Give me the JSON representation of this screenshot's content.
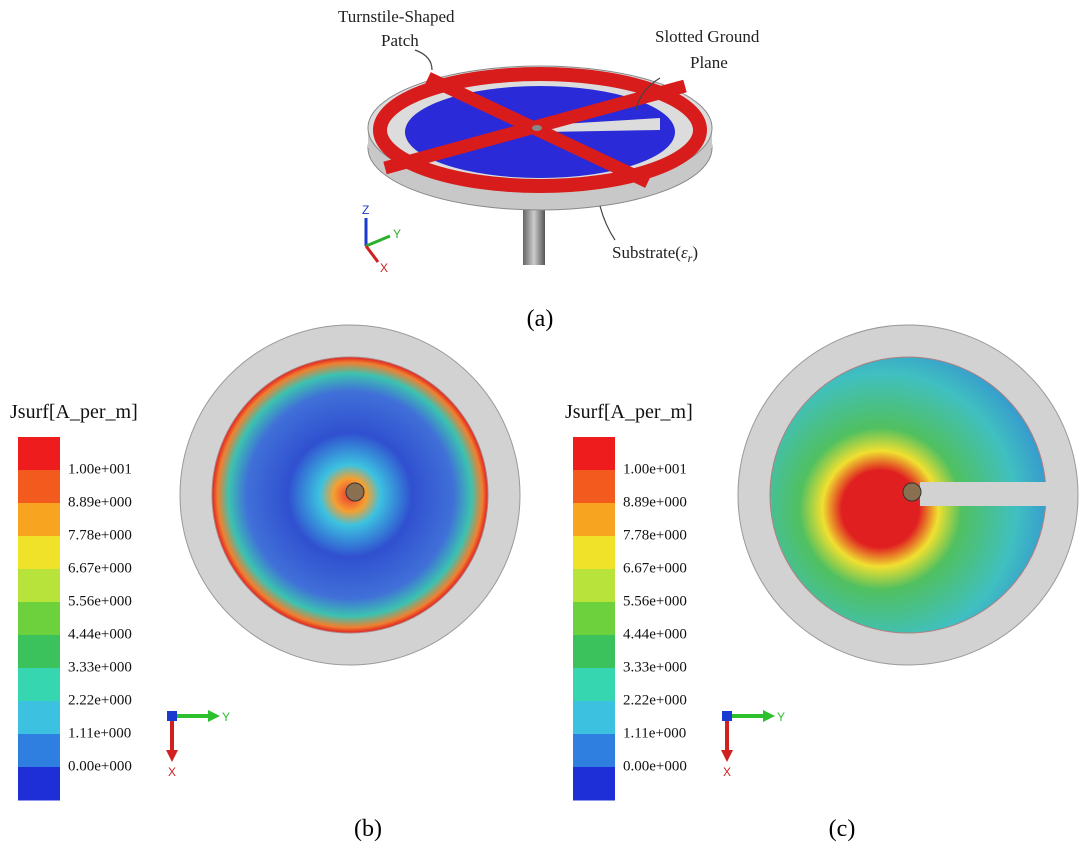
{
  "panel_a": {
    "patch_label": [
      "Turnstile-Shaped",
      "Patch"
    ],
    "ground_label": [
      "Slotted Ground",
      "Plane"
    ],
    "substrate_label": [
      "Substrate(",
      "ε",
      "r",
      ")"
    ],
    "axes": [
      "Z",
      "Y",
      "X"
    ],
    "caption": "(a)"
  },
  "panel_b": {
    "legend_title": "Jsurf[A_per_m]",
    "legend_labels": [
      "1.00e+001",
      "8.89e+000",
      "7.78e+000",
      "6.67e+000",
      "5.56e+000",
      "4.44e+000",
      "3.33e+000",
      "2.22e+000",
      "1.11e+000",
      "0.00e+000"
    ],
    "axes": [
      "Y",
      "X"
    ],
    "caption": "(b)"
  },
  "panel_c": {
    "legend_title": "Jsurf[A_per_m]",
    "legend_labels": [
      "1.00e+001",
      "8.89e+000",
      "7.78e+000",
      "6.67e+000",
      "5.56e+000",
      "4.44e+000",
      "3.33e+000",
      "2.22e+000",
      "1.11e+000",
      "0.00e+000"
    ],
    "axes": [
      "Y",
      "X"
    ],
    "caption": "(c)"
  }
}
